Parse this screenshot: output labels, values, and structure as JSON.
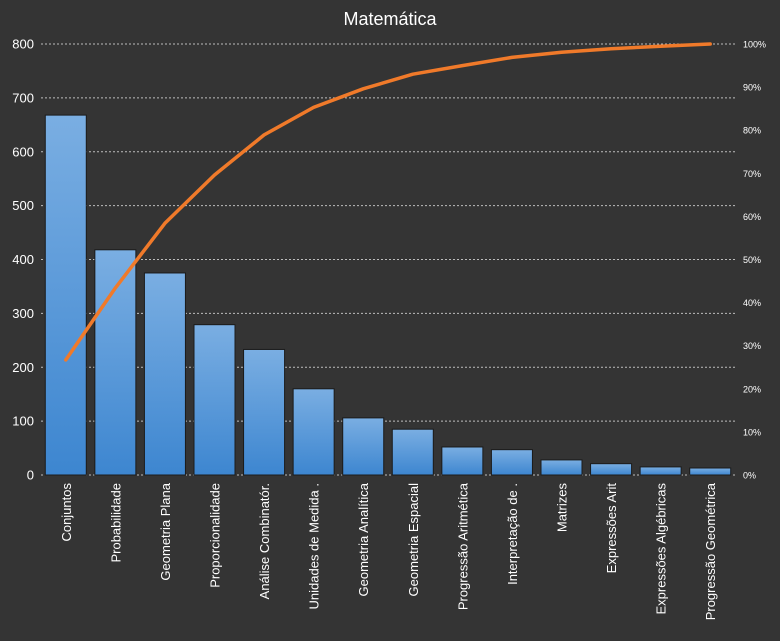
{
  "chart_data": {
    "type": "bar",
    "title": "Matemática",
    "categories": [
      "Conjuntos",
      "Probabilidade",
      "Geometria Plana",
      "Proporcionalidade",
      "Análise Combinatór.",
      "Unidades de Medida .",
      "Geometria Analítica",
      "Geometria Espacial",
      "Progressão Aritmética",
      "Interpretação de .",
      "Matrizes",
      "Expressões Arit",
      "Expressões Algébricas",
      "Progressão Geométrica"
    ],
    "series": [
      {
        "type": "bar",
        "axis": "left",
        "values": [
          668,
          418,
          375,
          279,
          233,
          160,
          106,
          85,
          52,
          47,
          28,
          21,
          15,
          13
        ]
      },
      {
        "type": "line",
        "axis": "right",
        "values": [
          26.7,
          43.4,
          58.4,
          69.6,
          78.9,
          85.3,
          89.6,
          93.0,
          95.0,
          96.9,
          98.1,
          98.9,
          99.5,
          100.0
        ]
      }
    ],
    "ylim": [
      0,
      800
    ],
    "yticks": [
      0,
      100,
      200,
      300,
      400,
      500,
      600,
      700,
      800
    ],
    "y2lim": [
      0,
      100
    ],
    "y2ticks": [
      "0%",
      "10%",
      "20%",
      "30%",
      "40%",
      "50%",
      "60%",
      "70%",
      "80%",
      "90%",
      "100%"
    ],
    "grid": true,
    "legend": "none",
    "colors": {
      "background": "#343434",
      "bar_top": "#7aaee2",
      "bar_bottom": "#3d86d0",
      "line": "#f07a2a",
      "text": "#ffffff",
      "grid": "#bdbdbd"
    }
  }
}
